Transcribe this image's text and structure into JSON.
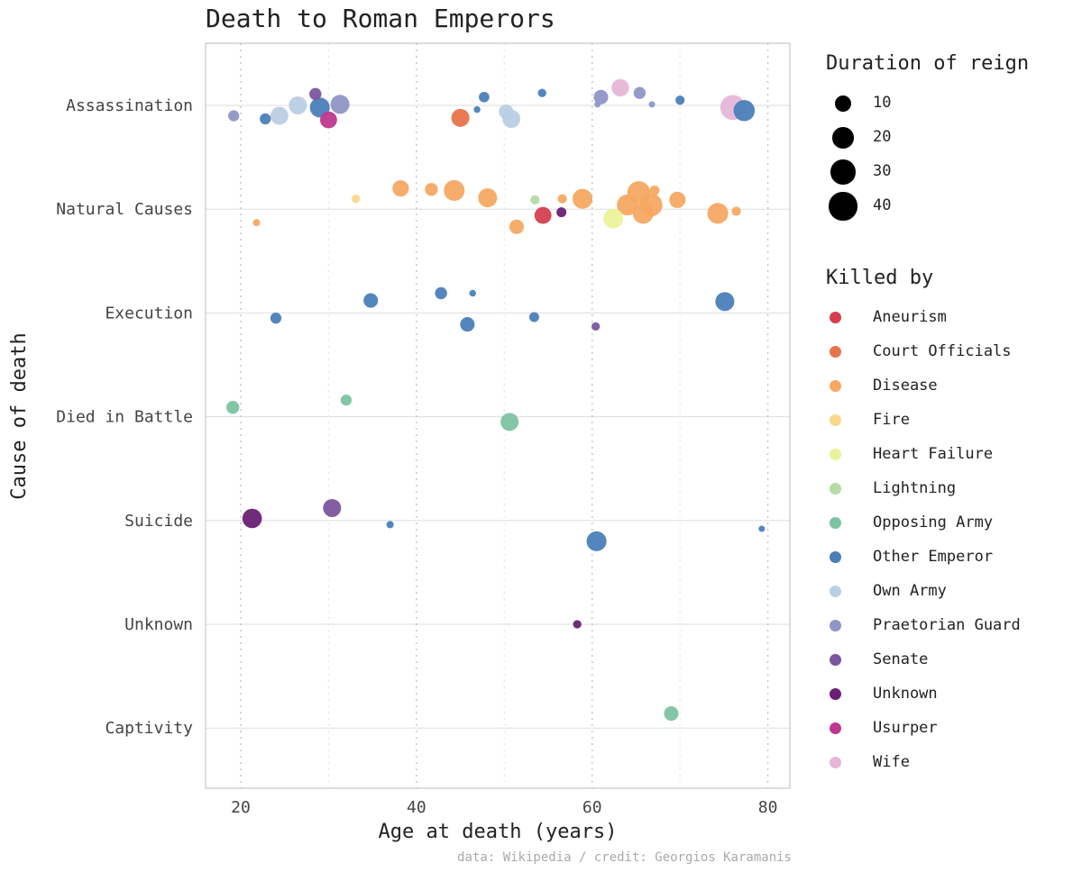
{
  "chart_data": {
    "type": "scatter",
    "title": "Death to Roman Emperors",
    "xlabel": "Age at death (years)",
    "ylabel": "Cause of death",
    "xlim": [
      16,
      82.5
    ],
    "xticks": [
      20,
      40,
      60,
      80
    ],
    "categories": [
      "Assassination",
      "Natural Causes",
      "Execution",
      "Died in Battle",
      "Suicide",
      "Unknown",
      "Captivity"
    ],
    "grid": true,
    "caption": "data: Wikipedia / credit: Georgios Karamanis",
    "size_legend": {
      "title": "Duration of reign",
      "values": [
        10,
        20,
        30,
        40
      ]
    },
    "color_legend": {
      "title": "Killed by",
      "items": [
        {
          "name": "Aneurism",
          "color": "#d53e4f"
        },
        {
          "name": "Court Officials",
          "color": "#e8734a"
        },
        {
          "name": "Disease",
          "color": "#f5a862"
        },
        {
          "name": "Fire",
          "color": "#f9d88a"
        },
        {
          "name": "Heart Failure",
          "color": "#ebf39a"
        },
        {
          "name": "Lightning",
          "color": "#b4dca4"
        },
        {
          "name": "Opposing Army",
          "color": "#7cc3a1"
        },
        {
          "name": "Other Emperor",
          "color": "#4a7fb8"
        },
        {
          "name": "Own Army",
          "color": "#b9cfe3"
        },
        {
          "name": "Praetorian Guard",
          "color": "#8f96c6"
        },
        {
          "name": "Senate",
          "color": "#7b559e"
        },
        {
          "name": "Unknown",
          "color": "#6a1f73"
        },
        {
          "name": "Usurper",
          "color": "#c0378f"
        },
        {
          "name": "Wife",
          "color": "#e6b6d8"
        }
      ]
    },
    "points": [
      {
        "age": 19.2,
        "cause": "Assassination",
        "jitter": -0.1,
        "killer": "Praetorian Guard",
        "reign": 3
      },
      {
        "age": 22.8,
        "cause": "Assassination",
        "jitter": -0.13,
        "killer": "Other Emperor",
        "reign": 3
      },
      {
        "age": 24.4,
        "cause": "Assassination",
        "jitter": -0.1,
        "killer": "Own Army",
        "reign": 13
      },
      {
        "age": 26.5,
        "cause": "Assassination",
        "jitter": 0.0,
        "killer": "Own Army",
        "reign": 13
      },
      {
        "age": 28.5,
        "cause": "Assassination",
        "jitter": 0.11,
        "killer": "Senate",
        "reign": 4
      },
      {
        "age": 29.0,
        "cause": "Assassination",
        "jitter": -0.02,
        "killer": "Other Emperor",
        "reign": 17
      },
      {
        "age": 30.0,
        "cause": "Assassination",
        "jitter": -0.14,
        "killer": "Usurper",
        "reign": 11
      },
      {
        "age": 31.3,
        "cause": "Assassination",
        "jitter": 0.01,
        "killer": "Praetorian Guard",
        "reign": 15
      },
      {
        "age": 45.0,
        "cause": "Assassination",
        "jitter": -0.12,
        "killer": "Court Officials",
        "reign": 13
      },
      {
        "age": 46.9,
        "cause": "Assassination",
        "jitter": -0.04,
        "killer": "Other Emperor",
        "reign": 0.3
      },
      {
        "age": 47.7,
        "cause": "Assassination",
        "jitter": 0.08,
        "killer": "Other Emperor",
        "reign": 2.5
      },
      {
        "age": 50.2,
        "cause": "Assassination",
        "jitter": -0.06,
        "killer": "Own Army",
        "reign": 7
      },
      {
        "age": 50.8,
        "cause": "Assassination",
        "jitter": -0.13,
        "killer": "Own Army",
        "reign": 13
      },
      {
        "age": 54.3,
        "cause": "Assassination",
        "jitter": 0.12,
        "killer": "Other Emperor",
        "reign": 1
      },
      {
        "age": 60.6,
        "cause": "Assassination",
        "jitter": 0.01,
        "killer": "Praetorian Guard",
        "reign": 0.2
      },
      {
        "age": 61.0,
        "cause": "Assassination",
        "jitter": 0.08,
        "killer": "Praetorian Guard",
        "reign": 7
      },
      {
        "age": 63.2,
        "cause": "Assassination",
        "jitter": 0.17,
        "killer": "Wife",
        "reign": 12
      },
      {
        "age": 65.4,
        "cause": "Assassination",
        "jitter": 0.12,
        "killer": "Praetorian Guard",
        "reign": 4
      },
      {
        "age": 66.8,
        "cause": "Assassination",
        "jitter": 0.01,
        "killer": "Praetorian Guard",
        "reign": 0.2
      },
      {
        "age": 70.0,
        "cause": "Assassination",
        "jitter": 0.05,
        "killer": "Other Emperor",
        "reign": 1.5
      },
      {
        "age": 76.0,
        "cause": "Assassination",
        "jitter": -0.02,
        "killer": "Wife",
        "reign": 30
      },
      {
        "age": 77.3,
        "cause": "Assassination",
        "jitter": -0.05,
        "killer": "Other Emperor",
        "reign": 20
      },
      {
        "age": 21.8,
        "cause": "Natural Causes",
        "jitter": -0.13,
        "killer": "Disease",
        "reign": 0.5
      },
      {
        "age": 33.1,
        "cause": "Natural Causes",
        "jitter": 0.1,
        "killer": "Fire",
        "reign": 1
      },
      {
        "age": 38.2,
        "cause": "Natural Causes",
        "jitter": 0.2,
        "killer": "Disease",
        "reign": 10
      },
      {
        "age": 41.7,
        "cause": "Natural Causes",
        "jitter": 0.19,
        "killer": "Disease",
        "reign": 5
      },
      {
        "age": 44.3,
        "cause": "Natural Causes",
        "jitter": 0.18,
        "killer": "Disease",
        "reign": 19
      },
      {
        "age": 48.1,
        "cause": "Natural Causes",
        "jitter": 0.11,
        "killer": "Disease",
        "reign": 15
      },
      {
        "age": 51.4,
        "cause": "Natural Causes",
        "jitter": -0.17,
        "killer": "Disease",
        "reign": 7
      },
      {
        "age": 53.5,
        "cause": "Natural Causes",
        "jitter": 0.09,
        "killer": "Lightning",
        "reign": 1.5
      },
      {
        "age": 54.4,
        "cause": "Natural Causes",
        "jitter": -0.06,
        "killer": "Aneurism",
        "reign": 11
      },
      {
        "age": 56.6,
        "cause": "Natural Causes",
        "jitter": 0.1,
        "killer": "Disease",
        "reign": 1.5
      },
      {
        "age": 56.5,
        "cause": "Natural Causes",
        "jitter": -0.03,
        "killer": "Unknown",
        "reign": 2
      },
      {
        "age": 58.9,
        "cause": "Natural Causes",
        "jitter": 0.1,
        "killer": "Disease",
        "reign": 17
      },
      {
        "age": 62.4,
        "cause": "Natural Causes",
        "jitter": -0.09,
        "killer": "Heart Failure",
        "reign": 17
      },
      {
        "age": 64.0,
        "cause": "Natural Causes",
        "jitter": 0.04,
        "killer": "Disease",
        "reign": 19
      },
      {
        "age": 65.3,
        "cause": "Natural Causes",
        "jitter": 0.16,
        "killer": "Disease",
        "reign": 24
      },
      {
        "age": 65.8,
        "cause": "Natural Causes",
        "jitter": -0.04,
        "killer": "Disease",
        "reign": 19
      },
      {
        "age": 66.7,
        "cause": "Natural Causes",
        "jitter": 0.04,
        "killer": "Disease",
        "reign": 24
      },
      {
        "age": 67.1,
        "cause": "Natural Causes",
        "jitter": 0.18,
        "killer": "Disease",
        "reign": 2
      },
      {
        "age": 69.7,
        "cause": "Natural Causes",
        "jitter": 0.09,
        "killer": "Disease",
        "reign": 10
      },
      {
        "age": 74.3,
        "cause": "Natural Causes",
        "jitter": -0.04,
        "killer": "Disease",
        "reign": 19
      },
      {
        "age": 76.4,
        "cause": "Natural Causes",
        "jitter": -0.02,
        "killer": "Disease",
        "reign": 1.5
      },
      {
        "age": 24.0,
        "cause": "Execution",
        "jitter": -0.05,
        "killer": "Other Emperor",
        "reign": 3
      },
      {
        "age": 34.8,
        "cause": "Execution",
        "jitter": 0.12,
        "killer": "Other Emperor",
        "reign": 7
      },
      {
        "age": 42.8,
        "cause": "Execution",
        "jitter": 0.19,
        "killer": "Other Emperor",
        "reign": 4
      },
      {
        "age": 45.8,
        "cause": "Execution",
        "jitter": -0.11,
        "killer": "Other Emperor",
        "reign": 7
      },
      {
        "age": 46.4,
        "cause": "Execution",
        "jitter": 0.19,
        "killer": "Other Emperor",
        "reign": 0.3
      },
      {
        "age": 53.4,
        "cause": "Execution",
        "jitter": -0.04,
        "killer": "Other Emperor",
        "reign": 2
      },
      {
        "age": 60.4,
        "cause": "Execution",
        "jitter": -0.13,
        "killer": "Senate",
        "reign": 1
      },
      {
        "age": 75.1,
        "cause": "Execution",
        "jitter": 0.11,
        "killer": "Other Emperor",
        "reign": 15
      },
      {
        "age": 19.1,
        "cause": "Died in Battle",
        "jitter": 0.09,
        "killer": "Opposing Army",
        "reign": 5
      },
      {
        "age": 32.0,
        "cause": "Died in Battle",
        "jitter": 0.16,
        "killer": "Opposing Army",
        "reign": 3
      },
      {
        "age": 50.6,
        "cause": "Died in Battle",
        "jitter": -0.05,
        "killer": "Opposing Army",
        "reign": 13
      },
      {
        "age": 21.3,
        "cause": "Suicide",
        "jitter": 0.02,
        "killer": "Unknown",
        "reign": 16
      },
      {
        "age": 30.4,
        "cause": "Suicide",
        "jitter": 0.12,
        "killer": "Senate",
        "reign": 13
      },
      {
        "age": 37.0,
        "cause": "Suicide",
        "jitter": -0.04,
        "killer": "Other Emperor",
        "reign": 0.5
      },
      {
        "age": 60.5,
        "cause": "Suicide",
        "jitter": -0.2,
        "killer": "Other Emperor",
        "reign": 17
      },
      {
        "age": 79.3,
        "cause": "Suicide",
        "jitter": -0.08,
        "killer": "Other Emperor",
        "reign": 0.2
      },
      {
        "age": 58.3,
        "cause": "Unknown",
        "jitter": 0.0,
        "killer": "Unknown",
        "reign": 1
      },
      {
        "age": 69.0,
        "cause": "Captivity",
        "jitter": 0.14,
        "killer": "Opposing Army",
        "reign": 7
      }
    ]
  }
}
